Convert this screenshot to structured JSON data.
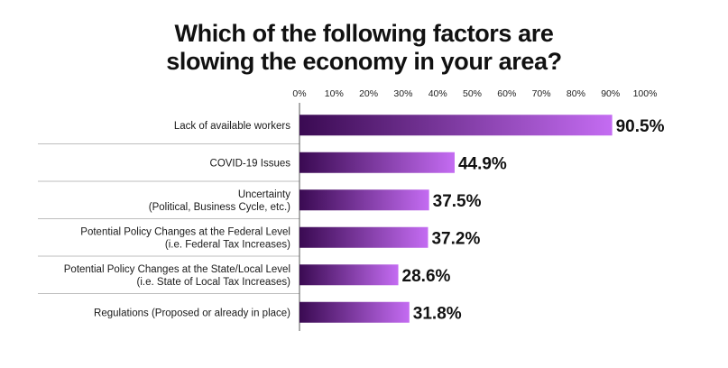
{
  "title_lines": [
    "Which of the following factors are",
    "slowing the economy in your area?"
  ],
  "colors": {
    "bar_start": "#3a0a52",
    "bar_end": "#c46cf2",
    "separator": "#bdbdbd",
    "axis": "#555555",
    "text": "#111111"
  },
  "chart_data": {
    "type": "bar",
    "orientation": "horizontal",
    "title": "Which of the following factors are slowing the economy in your area?",
    "xlabel": "",
    "ylabel": "",
    "xlim": [
      0,
      100
    ],
    "x_tick_values": [
      0,
      10,
      20,
      30,
      40,
      50,
      60,
      70,
      80,
      90,
      100
    ],
    "x_tick_labels": [
      "0%",
      "10%",
      "20%",
      "30%",
      "40%",
      "50%",
      "60%",
      "70%",
      "80%",
      "90%",
      "100%"
    ],
    "grid": false,
    "legend": "none",
    "categories": [
      [
        "Lack of available workers"
      ],
      [
        "COVID-19 Issues"
      ],
      [
        "Uncertainty",
        "(Political, Business Cycle, etc.)"
      ],
      [
        "Potential Policy Changes at the Federal Level",
        "(i.e. Federal Tax Increases)"
      ],
      [
        "Potential Policy Changes at the State/Local Level",
        "(i.e. State of Local Tax Increases)"
      ],
      [
        "Regulations (Proposed or already in place)"
      ]
    ],
    "values": [
      90.5,
      44.9,
      37.5,
      37.2,
      28.6,
      31.8
    ],
    "value_labels": [
      "90.5%",
      "44.9%",
      "37.5%",
      "37.2%",
      "28.6%",
      "31.8%"
    ]
  }
}
